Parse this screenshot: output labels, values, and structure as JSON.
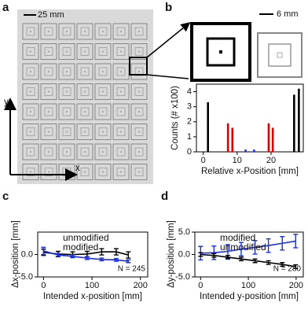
{
  "panels": {
    "a": {
      "label": "a",
      "scale_bar": "25 mm",
      "axis_y": "y",
      "axis_x": "x"
    },
    "b": {
      "label": "b",
      "scale_bar": "6 mm"
    },
    "c": {
      "label": "c"
    },
    "d": {
      "label": "d"
    }
  },
  "chart_data": [
    {
      "type": "bar",
      "xlabel": "Relative x-Position [mm]",
      "ylabel": "Counts (# x100)",
      "xlim": [
        -2,
        29.5
      ],
      "ylim": [
        0,
        4.5
      ],
      "xticks": [
        0,
        10,
        20
      ],
      "yticks": [
        0,
        1,
        2,
        3,
        4
      ],
      "series": [
        {
          "color": "#000000",
          "x": [
            1.4,
            26.8,
            28.2
          ],
          "values": [
            3.3,
            3.8,
            4.2
          ]
        },
        {
          "color": "#e00000",
          "x": [
            7.3,
            8.6,
            19.3,
            20.5
          ],
          "values": [
            1.9,
            1.6,
            1.9,
            1.6
          ]
        },
        {
          "color": "#1a2fe0",
          "x": [
            12.5,
            15.0
          ],
          "values": [
            0.15,
            0.15
          ]
        }
      ]
    },
    {
      "type": "line",
      "xlabel": "Intended x-position [mm]",
      "ylabel": "Δx-position [mm]",
      "annotation": "N = 245",
      "xlim": [
        -12,
        215
      ],
      "ylim": [
        -5,
        5
      ],
      "xticks": [
        0,
        100,
        200
      ],
      "yticks": [
        {
          "value": 0,
          "label": "0.0"
        },
        {
          "value": -5,
          "label": "-5.0"
        }
      ],
      "series": [
        {
          "name": "unmodified",
          "color": "#000000",
          "x": [
            0,
            30,
            60,
            90,
            120,
            150,
            175
          ],
          "values": [
            0.5,
            0.1,
            0.0,
            0.1,
            0.6,
            0.6,
            -0.1
          ],
          "errors": [
            0.7,
            0.6,
            0.6,
            0.6,
            0.7,
            0.7,
            0.7
          ]
        },
        {
          "name": "modified",
          "color": "#1a2fe0",
          "x": [
            0,
            30,
            60,
            90,
            120,
            150,
            175
          ],
          "values": [
            0.8,
            -0.1,
            -0.4,
            -0.8,
            -1.1,
            -1.2,
            -1.5
          ],
          "errors": [
            0.8,
            0.3,
            0.3,
            0.3,
            0.3,
            0.3,
            0.3
          ]
        }
      ]
    },
    {
      "type": "line",
      "xlabel": "Intended y-position [mm]",
      "ylabel": "Δy-position [mm]",
      "annotation": "N = 280",
      "xlim": [
        -12,
        215
      ],
      "ylim": [
        -5,
        5
      ],
      "xticks": [
        0,
        100,
        200
      ],
      "yticks": [
        {
          "value": 5,
          "label": "5.0"
        },
        {
          "value": 0,
          "label": "0.0"
        },
        {
          "value": -5,
          "label": "-5.0"
        }
      ],
      "series": [
        {
          "name": "modified",
          "color": "#1a2fe0",
          "x": [
            0,
            28,
            57,
            85,
            114,
            142,
            171,
            199
          ],
          "values": [
            0.3,
            0.4,
            0.7,
            1.2,
            1.6,
            2.0,
            2.5,
            3.0
          ],
          "errors": [
            1.5,
            1.5,
            1.5,
            1.5,
            1.5,
            1.5,
            1.5,
            1.5
          ]
        },
        {
          "name": "unmodified",
          "color": "#000000",
          "x": [
            0,
            28,
            57,
            85,
            114,
            142,
            171,
            199
          ],
          "values": [
            0.0,
            -0.2,
            -0.6,
            -1.0,
            -1.4,
            -1.8,
            -2.2,
            -2.7
          ],
          "errors": [
            0.4,
            0.4,
            0.4,
            0.4,
            0.4,
            0.4,
            0.4,
            0.4
          ]
        }
      ]
    }
  ]
}
